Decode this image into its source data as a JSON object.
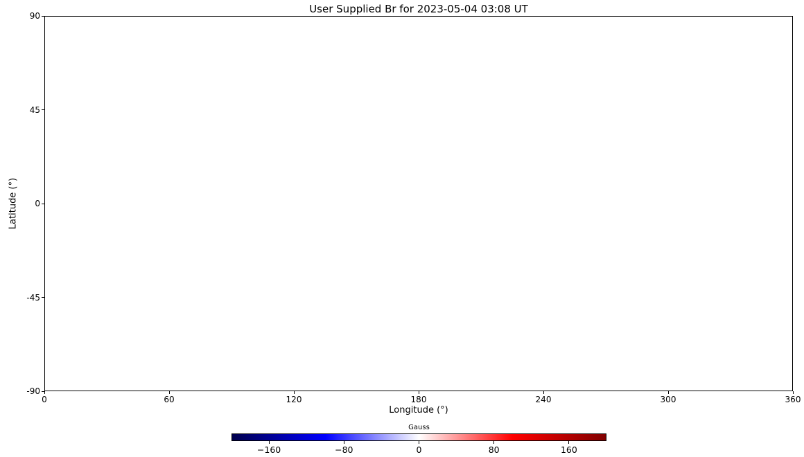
{
  "chart_data": {
    "type": "heatmap",
    "title": "User Supplied Br for 2023-05-04 03:08 UT",
    "xlabel": "Longitude (°)",
    "ylabel": "Latitude (°)",
    "xlim": [
      0,
      360
    ],
    "ylim": [
      -90,
      90
    ],
    "x_ticks": [
      {
        "value": 0,
        "label": "0"
      },
      {
        "value": 60,
        "label": "60"
      },
      {
        "value": 120,
        "label": "120"
      },
      {
        "value": 180,
        "label": "180"
      },
      {
        "value": 240,
        "label": "240"
      },
      {
        "value": 300,
        "label": "300"
      },
      {
        "value": 360,
        "label": "360"
      }
    ],
    "y_ticks": [
      {
        "value": 90,
        "label": "90"
      },
      {
        "value": 45,
        "label": "45"
      },
      {
        "value": 0,
        "label": "0"
      },
      {
        "value": -45,
        "label": "-45"
      },
      {
        "value": -90,
        "label": "-90"
      }
    ],
    "grid": false,
    "plot_area_empty": true,
    "series": [],
    "legend": null,
    "colorbar": {
      "label": "Gauss",
      "orientation": "horizontal",
      "range": [
        -200,
        200
      ],
      "ticks": [
        {
          "value": -160,
          "label": "−160"
        },
        {
          "value": -80,
          "label": "−80"
        },
        {
          "value": 0,
          "label": "0"
        },
        {
          "value": 80,
          "label": "80"
        },
        {
          "value": 160,
          "label": "160"
        }
      ],
      "colormap": "seismic",
      "gradient_stops": [
        {
          "pos": 0.0,
          "color": "#00004C"
        },
        {
          "pos": 0.25,
          "color": "#0000FF"
        },
        {
          "pos": 0.5,
          "color": "#FFFFFF"
        },
        {
          "pos": 0.75,
          "color": "#FF0000"
        },
        {
          "pos": 1.0,
          "color": "#800000"
        }
      ]
    },
    "colors": {
      "background": "#FFFFFF",
      "axes": "#000000",
      "text": "#000000"
    }
  }
}
